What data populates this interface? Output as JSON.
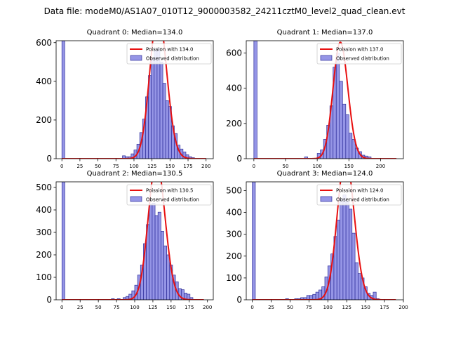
{
  "figure": {
    "suptitle": "Data file: modeM0/AS1A07_010T12_9000003582_24211cztM0_level2_quad_clean.evt",
    "colors": {
      "bar_fill": "#7b7be0",
      "bar_edge": "#2f2f9a",
      "curve": "#e81010",
      "axis": "#000000"
    }
  },
  "chart_data": [
    {
      "type": "bar",
      "title": "Quadrant 0: Median=134.0",
      "xlabel": "",
      "ylabel": "",
      "xlim": [
        -8,
        210
      ],
      "ylim": [
        0,
        610
      ],
      "xticks": [
        0,
        25,
        50,
        75,
        100,
        125,
        150,
        175,
        200
      ],
      "yticks": [
        0,
        200,
        400,
        600
      ],
      "bin_width": 4,
      "bin_starts": [
        0,
        84,
        88,
        92,
        96,
        100,
        104,
        108,
        112,
        116,
        120,
        124,
        128,
        132,
        136,
        140,
        144,
        148,
        152,
        156,
        160,
        164,
        168,
        172,
        176,
        180
      ],
      "values": [
        610,
        15,
        10,
        10,
        25,
        45,
        75,
        135,
        205,
        320,
        430,
        520,
        560,
        570,
        500,
        390,
        300,
        270,
        170,
        130,
        70,
        50,
        35,
        20,
        10,
        5
      ],
      "curve": {
        "label": "Poission with 134.0",
        "mu": 134.0,
        "x_range": [
          0,
          200
        ]
      },
      "legend": [
        "Poission with 134.0",
        "Observed distribution"
      ]
    },
    {
      "type": "bar",
      "title": "Quadrant 1: Median=137.0",
      "xlabel": "",
      "ylabel": "",
      "xlim": [
        -12,
        236
      ],
      "ylim": [
        0,
        670
      ],
      "xticks": [
        0,
        50,
        100,
        150,
        200
      ],
      "yticks": [
        0,
        200,
        400,
        600
      ],
      "bin_width": 5,
      "bin_starts": [
        0,
        80,
        100,
        105,
        110,
        115,
        120,
        125,
        130,
        135,
        140,
        145,
        150,
        155,
        160,
        165,
        170,
        175,
        180
      ],
      "values": [
        670,
        10,
        30,
        50,
        110,
        190,
        300,
        520,
        600,
        440,
        310,
        250,
        145,
        110,
        60,
        40,
        20,
        15,
        10
      ],
      "curve": {
        "label": "Poission with 137.0",
        "mu": 137.0,
        "x_range": [
          0,
          225
        ]
      },
      "legend": [
        "Poission with 137.0",
        "Observed distribution"
      ]
    },
    {
      "type": "bar",
      "title": "Quadrant 2: Median=130.5",
      "xlabel": "",
      "ylabel": "",
      "xlim": [
        -8,
        208
      ],
      "ylim": [
        0,
        525
      ],
      "xticks": [
        0,
        25,
        50,
        75,
        100,
        125,
        150,
        175,
        200
      ],
      "yticks": [
        0,
        100,
        200,
        300,
        400,
        500
      ],
      "bin_width": 4,
      "bin_starts": [
        0,
        68,
        76,
        84,
        88,
        92,
        96,
        100,
        104,
        108,
        112,
        116,
        120,
        124,
        128,
        132,
        136,
        140,
        144,
        148,
        152,
        156,
        160,
        164,
        168,
        172,
        176
      ],
      "values": [
        525,
        5,
        5,
        10,
        15,
        25,
        40,
        65,
        110,
        155,
        250,
        335,
        425,
        430,
        375,
        390,
        305,
        240,
        200,
        155,
        110,
        80,
        50,
        45,
        30,
        25,
        10
      ],
      "curve": {
        "label": "Poission with 130.5",
        "mu": 130.5,
        "x_range": [
          0,
          195
        ]
      },
      "legend": [
        "Poission with 130.5",
        "Observed distribution"
      ]
    },
    {
      "type": "bar",
      "title": "Quadrant 3: Median=124.0",
      "xlabel": "",
      "ylabel": "",
      "xlim": [
        -8,
        200
      ],
      "ylim": [
        0,
        540
      ],
      "xticks": [
        0,
        25,
        50,
        75,
        100,
        125,
        150,
        175,
        200
      ],
      "yticks": [
        0,
        100,
        200,
        300,
        400,
        500
      ],
      "bin_width": 4,
      "bin_starts": [
        0,
        44,
        56,
        60,
        64,
        68,
        72,
        76,
        80,
        84,
        88,
        92,
        96,
        100,
        104,
        108,
        112,
        116,
        120,
        124,
        128,
        132,
        136,
        140,
        144,
        148,
        152,
        156,
        160,
        164
      ],
      "values": [
        540,
        5,
        5,
        5,
        10,
        10,
        20,
        20,
        25,
        35,
        45,
        60,
        105,
        155,
        210,
        290,
        365,
        460,
        480,
        450,
        415,
        305,
        170,
        120,
        100,
        60,
        30,
        20,
        35,
        5
      ],
      "curve": {
        "label": "Poission with 124.0",
        "mu": 124.0,
        "x_range": [
          0,
          190
        ]
      },
      "legend": [
        "Poission with 124.0",
        "Observed distribution"
      ]
    }
  ]
}
